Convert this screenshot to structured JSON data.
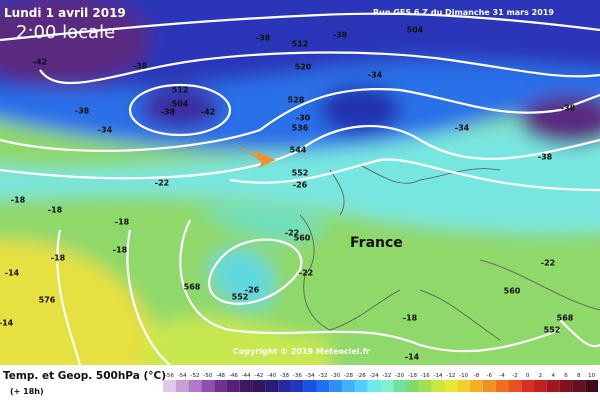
{
  "header": {
    "date": "Lundi 1 avril 2019",
    "time": "2:00 locale",
    "run": "Run GFS 6 Z du Dimanche 31 mars 2019"
  },
  "map": {
    "country": "France",
    "copyright": "Copyright © 2019 Meteociel.fr",
    "labels": [
      "-42",
      "-38",
      "-38",
      "-38",
      "512",
      "504",
      "-42",
      "-34",
      "-38",
      "512",
      "-38",
      "504",
      "520",
      "-34",
      "528",
      "536",
      "544",
      "-30",
      "552",
      "-26",
      "-34",
      "-38",
      "-38",
      "-22",
      "-18",
      "-18",
      "-18",
      "-22",
      "560",
      "-22",
      "-26",
      "552",
      "568",
      "576",
      "-14",
      "-18",
      "-14",
      "-18",
      "-18",
      "560",
      "-22",
      "552",
      "568",
      "-14"
    ]
  },
  "legend": {
    "title": "Temp. et Geop. 500hPa (°C)",
    "lead": "(+ 18h)",
    "ticks": [
      -56,
      -54,
      -52,
      -50,
      -48,
      -46,
      -44,
      -42,
      -40,
      -38,
      -36,
      -34,
      -32,
      -30,
      -28,
      -26,
      -24,
      -22,
      -20,
      -18,
      -16,
      -14,
      -12,
      -10,
      -8,
      -6,
      -4,
      -2,
      0,
      2,
      4,
      6,
      8,
      10
    ],
    "colors": [
      "#e0c8e8",
      "#c8a0d8",
      "#b078c8",
      "#9050b0",
      "#703090",
      "#582078",
      "#401860",
      "#301860",
      "#281c78",
      "#2828a0",
      "#2038c0",
      "#1850e0",
      "#2070f0",
      "#3090f8",
      "#40b0f8",
      "#50d0f8",
      "#70e8f0",
      "#80f0d0",
      "#70e0a0",
      "#80d870",
      "#a0e050",
      "#c8e840",
      "#e8e830",
      "#f0d028",
      "#f0b020",
      "#f09020",
      "#f07020",
      "#e85020",
      "#d83020",
      "#c02020",
      "#a01820",
      "#801020",
      "#601020",
      "#400818"
    ]
  }
}
